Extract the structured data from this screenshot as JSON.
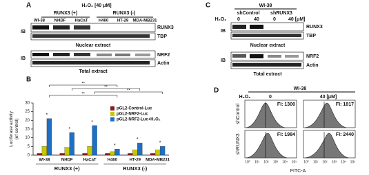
{
  "panel_a": {
    "label": "A",
    "treatment": "H₂O₂ [40 μM]",
    "groups": [
      "RUNX3 (+)",
      "RUNX3 (-)"
    ],
    "lanes": [
      "WI-38",
      "NHDF",
      "HaCaT",
      "H460",
      "HT-29",
      "MDA-MB231"
    ],
    "blots": [
      "RUNX3",
      "TBP",
      "NRF2",
      "Actin"
    ],
    "ib": "IB",
    "nuclear": "Nuclear extract",
    "total": "Total extract"
  },
  "panel_b": {
    "label": "B"
  },
  "chart_data": {
    "type": "bar",
    "ylabel": "Luciferase activity\n(of control)",
    "categories": [
      "WI-38",
      "NHDF",
      "HaCaT",
      "H460",
      "HT-29",
      "MDA-MB231"
    ],
    "group_labels": [
      "RUNX3 (+)",
      "RUNX3 (-)"
    ],
    "series": [
      {
        "name": "pGL2-Control-Luc",
        "color": "#8b1a1a",
        "values": [
          1,
          1,
          1,
          1,
          1,
          1
        ]
      },
      {
        "name": "pGL2-NRF2-Luc",
        "color": "#c8c800",
        "values": [
          5,
          4.5,
          5,
          2,
          3,
          3
        ]
      },
      {
        "name": "pGL2-NRF2-Luc+H₂O₂",
        "color": "#1f6fc4",
        "values": [
          21,
          13,
          17,
          3.5,
          7,
          5
        ]
      }
    ],
    "ylim": [
      0,
      30
    ],
    "yticks": [
      0,
      5,
      10,
      15,
      20,
      25,
      30
    ],
    "legend": "upper-right",
    "star": "*",
    "significance": [
      "**",
      "**",
      "**",
      "**"
    ]
  },
  "panel_c": {
    "label": "C",
    "cell": "WI-38",
    "constructs": [
      "shControl",
      "shRUNX3"
    ],
    "treatment": "H₂O₂",
    "doses": [
      "0",
      "40",
      "0",
      "40 [μM]"
    ],
    "blots": [
      "RUNX3",
      "TBP",
      "NRF2",
      "Actin"
    ],
    "ib": "IB",
    "nuclear": "Nuclear extract",
    "total": "Total extract"
  },
  "panel_d": {
    "label": "D",
    "cell": "WI-38",
    "treatment": "H₂O₂",
    "doses": [
      "0",
      "40 [μM]"
    ],
    "rows": [
      "shControl",
      "shRUNX3"
    ],
    "fi": [
      "FI: 1300",
      "FI: 1817",
      "FI: 1984",
      "FI: 2440"
    ],
    "xticks": [
      "10⁰",
      "10¹",
      "10²",
      "10³",
      "10⁴",
      "10⁵"
    ],
    "xlabel": "FITC-A"
  }
}
